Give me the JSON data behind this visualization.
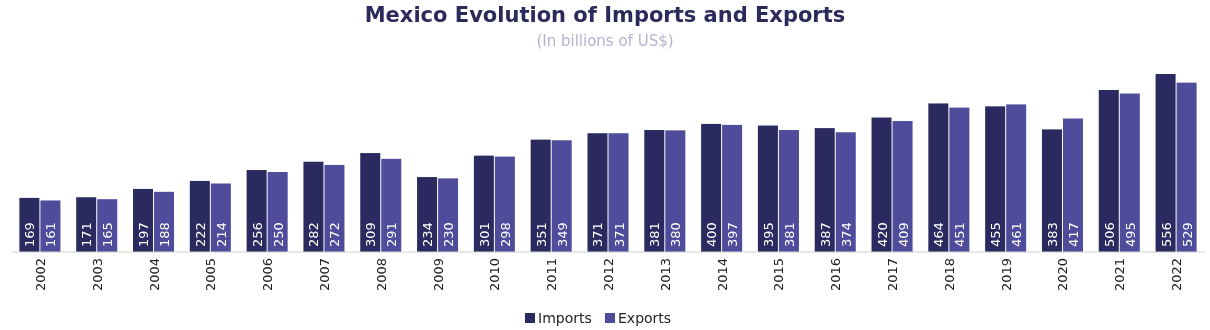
{
  "chart_data": {
    "type": "bar",
    "title": "Mexico Evolution of Imports and Exports",
    "subtitle": "(In billions of US$)",
    "categories": [
      "2002",
      "2003",
      "2004",
      "2005",
      "2006",
      "2007",
      "2008",
      "2009",
      "2010",
      "2011",
      "2012",
      "2013",
      "2014",
      "2015",
      "2016",
      "2017",
      "2018",
      "2019",
      "2020",
      "2021",
      "2022"
    ],
    "series": [
      {
        "name": "Imports",
        "color": "#2b2a60",
        "values": [
          169,
          171,
          197,
          222,
          256,
          282,
          309,
          234,
          301,
          351,
          371,
          381,
          400,
          395,
          387,
          420,
          464,
          455,
          383,
          506,
          556
        ]
      },
      {
        "name": "Exports",
        "color": "#4f4c9c",
        "values": [
          161,
          165,
          188,
          214,
          250,
          272,
          291,
          230,
          298,
          349,
          371,
          380,
          397,
          381,
          374,
          409,
          451,
          461,
          417,
          495,
          529
        ]
      }
    ],
    "data_labels": true,
    "legend": "bottom"
  }
}
